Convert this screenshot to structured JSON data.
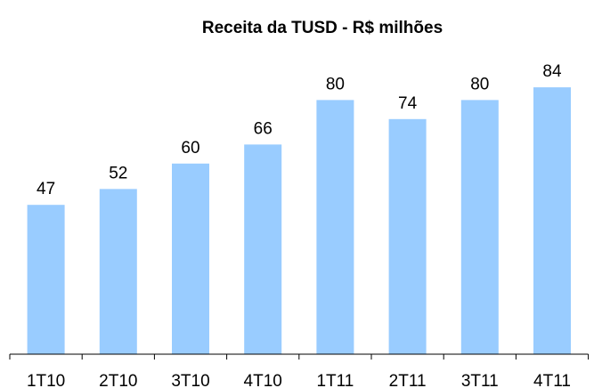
{
  "chart_data": {
    "type": "bar",
    "title": "Receita da TUSD - R$ milhões",
    "categories": [
      "1T10",
      "2T10",
      "3T10",
      "4T10",
      "1T11",
      "2T11",
      "3T11",
      "4T11"
    ],
    "values": [
      47,
      52,
      60,
      66,
      80,
      74,
      80,
      84
    ],
    "color": "#99ccff"
  }
}
